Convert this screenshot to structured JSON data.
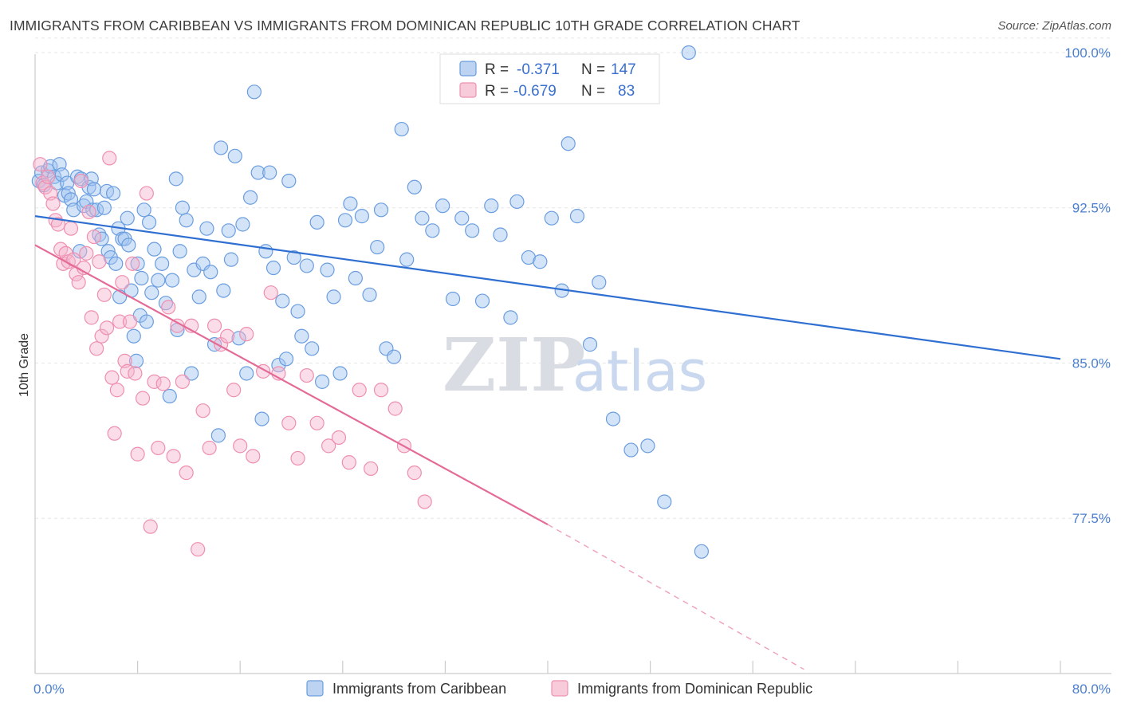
{
  "header": {
    "title": "IMMIGRANTS FROM CARIBBEAN VS IMMIGRANTS FROM DOMINICAN REPUBLIC 10TH GRADE CORRELATION CHART",
    "source": "Source: ZipAtlas.com"
  },
  "watermark": {
    "zip": "ZIP",
    "atlas": "atlas"
  },
  "legend": {
    "r_label": "R =",
    "n_label": "N =",
    "rows": [
      {
        "r": "-0.371",
        "n": "147",
        "color": "#6a9de0"
      },
      {
        "r": "-0.679",
        "n": "83",
        "color": "#ef8fb0"
      }
    ]
  },
  "chart_data": {
    "type": "scatter",
    "title": "IMMIGRANTS FROM CARIBBEAN VS IMMIGRANTS FROM DOMINICAN REPUBLIC 10TH GRADE CORRELATION CHART",
    "xlabel": "",
    "ylabel": "10th Grade",
    "xlim": [
      0,
      80
    ],
    "ylim": [
      70,
      101
    ],
    "x_tick_labels": [
      "0.0%",
      "80.0%"
    ],
    "y_ticks": [
      77.5,
      85.0,
      92.5,
      100.0
    ],
    "y_tick_labels": [
      "77.5%",
      "85.0%",
      "92.5%",
      "100.0%"
    ],
    "grid": true,
    "legend_position": "top-center",
    "series": [
      {
        "name": "Immigrants from Caribbean",
        "color": "#6a9de0",
        "trend": {
          "x": [
            0,
            80
          ],
          "y": [
            92.1,
            85.2
          ],
          "style": "solid"
        },
        "points": [
          [
            0.3,
            93.8
          ],
          [
            0.5,
            94.2
          ],
          [
            0.7,
            93.6
          ],
          [
            1.0,
            94.3
          ],
          [
            1.2,
            94.5
          ],
          [
            1.5,
            94.0
          ],
          [
            1.7,
            93.7
          ],
          [
            1.9,
            94.6
          ],
          [
            2.1,
            94.1
          ],
          [
            2.3,
            93.1
          ],
          [
            2.5,
            93.7
          ],
          [
            2.6,
            93.2
          ],
          [
            2.8,
            92.9
          ],
          [
            3.0,
            92.4
          ],
          [
            3.3,
            94.0
          ],
          [
            3.5,
            90.4
          ],
          [
            3.6,
            93.9
          ],
          [
            3.8,
            92.6
          ],
          [
            4.0,
            92.8
          ],
          [
            4.2,
            93.5
          ],
          [
            4.4,
            93.9
          ],
          [
            4.5,
            92.4
          ],
          [
            4.6,
            93.4
          ],
          [
            4.8,
            92.4
          ],
          [
            5.0,
            91.2
          ],
          [
            5.2,
            91.0
          ],
          [
            5.4,
            92.5
          ],
          [
            5.6,
            93.3
          ],
          [
            5.7,
            90.4
          ],
          [
            5.9,
            90.1
          ],
          [
            6.1,
            93.2
          ],
          [
            6.3,
            89.8
          ],
          [
            6.5,
            91.5
          ],
          [
            6.6,
            88.2
          ],
          [
            6.8,
            91.0
          ],
          [
            7.0,
            91.0
          ],
          [
            7.2,
            92.0
          ],
          [
            7.3,
            90.7
          ],
          [
            7.5,
            88.5
          ],
          [
            7.7,
            86.3
          ],
          [
            7.9,
            85.1
          ],
          [
            8.0,
            89.8
          ],
          [
            8.2,
            87.3
          ],
          [
            8.3,
            89.1
          ],
          [
            8.5,
            92.4
          ],
          [
            8.7,
            87.0
          ],
          [
            8.9,
            91.8
          ],
          [
            9.1,
            88.4
          ],
          [
            9.3,
            90.5
          ],
          [
            9.6,
            89.0
          ],
          [
            9.9,
            89.8
          ],
          [
            10.2,
            87.9
          ],
          [
            10.5,
            83.4
          ],
          [
            10.7,
            89.0
          ],
          [
            11.0,
            93.9
          ],
          [
            11.1,
            86.6
          ],
          [
            11.3,
            90.4
          ],
          [
            11.5,
            92.5
          ],
          [
            11.8,
            91.9
          ],
          [
            12.2,
            84.5
          ],
          [
            12.4,
            89.5
          ],
          [
            12.8,
            88.2
          ],
          [
            13.1,
            89.8
          ],
          [
            13.4,
            91.5
          ],
          [
            13.7,
            89.4
          ],
          [
            14.0,
            85.9
          ],
          [
            14.3,
            81.5
          ],
          [
            14.5,
            95.4
          ],
          [
            14.7,
            88.5
          ],
          [
            15.1,
            91.4
          ],
          [
            15.3,
            90.0
          ],
          [
            15.6,
            95.0
          ],
          [
            15.9,
            86.2
          ],
          [
            16.2,
            91.7
          ],
          [
            16.5,
            84.5
          ],
          [
            16.8,
            93.0
          ],
          [
            17.1,
            98.1
          ],
          [
            17.4,
            94.2
          ],
          [
            17.7,
            82.3
          ],
          [
            18.0,
            90.4
          ],
          [
            18.3,
            94.2
          ],
          [
            18.6,
            89.6
          ],
          [
            19.0,
            84.9
          ],
          [
            19.3,
            88.0
          ],
          [
            19.6,
            85.2
          ],
          [
            19.8,
            93.8
          ],
          [
            20.2,
            90.1
          ],
          [
            20.5,
            87.5
          ],
          [
            20.8,
            86.3
          ],
          [
            21.2,
            89.7
          ],
          [
            21.6,
            85.7
          ],
          [
            22.0,
            91.8
          ],
          [
            22.4,
            84.1
          ],
          [
            22.8,
            89.5
          ],
          [
            23.3,
            88.2
          ],
          [
            23.8,
            84.5
          ],
          [
            24.2,
            91.9
          ],
          [
            24.6,
            92.7
          ],
          [
            25.0,
            89.1
          ],
          [
            25.5,
            92.1
          ],
          [
            26.1,
            88.3
          ],
          [
            26.7,
            90.6
          ],
          [
            27.0,
            92.4
          ],
          [
            27.4,
            85.7
          ],
          [
            28.0,
            85.3
          ],
          [
            28.6,
            96.3
          ],
          [
            29.0,
            90.0
          ],
          [
            29.6,
            93.5
          ],
          [
            30.2,
            92.0
          ],
          [
            31.0,
            91.4
          ],
          [
            31.8,
            92.6
          ],
          [
            32.6,
            88.1
          ],
          [
            33.3,
            92.0
          ],
          [
            34.1,
            91.4
          ],
          [
            34.9,
            88.0
          ],
          [
            35.6,
            92.6
          ],
          [
            36.3,
            91.2
          ],
          [
            37.1,
            87.2
          ],
          [
            37.6,
            92.8
          ],
          [
            38.5,
            90.1
          ],
          [
            39.4,
            89.9
          ],
          [
            40.3,
            92.0
          ],
          [
            41.1,
            88.5
          ],
          [
            41.6,
            95.6
          ],
          [
            42.3,
            92.1
          ],
          [
            43.3,
            85.9
          ],
          [
            44.0,
            88.9
          ],
          [
            45.1,
            82.3
          ],
          [
            46.5,
            80.8
          ],
          [
            47.8,
            81.0
          ],
          [
            49.1,
            78.3
          ],
          [
            51.0,
            100.0
          ],
          [
            52.0,
            75.9
          ]
        ]
      },
      {
        "name": "Immigrants from Dominican Republic",
        "color": "#ef8fb0",
        "trend": {
          "x": [
            0,
            40
          ],
          "y": [
            90.7,
            77.2
          ],
          "style": "solid",
          "extension": {
            "x": [
              40,
              60
            ],
            "y": [
              77.2,
              70.2
            ],
            "style": "dashed"
          }
        },
        "points": [
          [
            0.4,
            94.6
          ],
          [
            0.6,
            93.7
          ],
          [
            0.8,
            93.5
          ],
          [
            1.0,
            94.0
          ],
          [
            1.2,
            93.2
          ],
          [
            1.4,
            92.7
          ],
          [
            1.6,
            91.9
          ],
          [
            1.8,
            91.7
          ],
          [
            2.0,
            90.5
          ],
          [
            2.2,
            89.8
          ],
          [
            2.4,
            90.3
          ],
          [
            2.6,
            89.9
          ],
          [
            2.8,
            91.5
          ],
          [
            3.0,
            90.0
          ],
          [
            3.2,
            89.3
          ],
          [
            3.4,
            88.9
          ],
          [
            3.6,
            93.8
          ],
          [
            3.8,
            89.6
          ],
          [
            4.0,
            90.3
          ],
          [
            4.2,
            92.3
          ],
          [
            4.4,
            87.2
          ],
          [
            4.6,
            91.1
          ],
          [
            4.8,
            85.7
          ],
          [
            5.0,
            89.9
          ],
          [
            5.2,
            86.3
          ],
          [
            5.4,
            88.3
          ],
          [
            5.6,
            86.7
          ],
          [
            5.8,
            94.9
          ],
          [
            6.0,
            84.3
          ],
          [
            6.2,
            81.6
          ],
          [
            6.4,
            83.7
          ],
          [
            6.6,
            87.0
          ],
          [
            6.8,
            88.9
          ],
          [
            7.0,
            85.1
          ],
          [
            7.2,
            84.6
          ],
          [
            7.4,
            87.0
          ],
          [
            7.6,
            89.8
          ],
          [
            7.8,
            84.5
          ],
          [
            8.0,
            80.6
          ],
          [
            8.4,
            83.3
          ],
          [
            8.7,
            93.2
          ],
          [
            9.0,
            77.1
          ],
          [
            9.3,
            84.1
          ],
          [
            9.6,
            80.9
          ],
          [
            10.0,
            84.0
          ],
          [
            10.4,
            87.7
          ],
          [
            10.8,
            80.5
          ],
          [
            11.1,
            86.8
          ],
          [
            11.5,
            84.1
          ],
          [
            11.8,
            79.7
          ],
          [
            12.2,
            86.8
          ],
          [
            12.7,
            76.0
          ],
          [
            13.1,
            82.7
          ],
          [
            13.6,
            80.9
          ],
          [
            14.0,
            86.8
          ],
          [
            14.5,
            85.9
          ],
          [
            15.0,
            86.3
          ],
          [
            15.5,
            83.7
          ],
          [
            16.0,
            81.0
          ],
          [
            16.5,
            86.4
          ],
          [
            17.0,
            80.5
          ],
          [
            17.8,
            84.6
          ],
          [
            18.4,
            88.4
          ],
          [
            19.0,
            84.5
          ],
          [
            19.8,
            82.1
          ],
          [
            20.5,
            80.4
          ],
          [
            21.2,
            84.4
          ],
          [
            22.0,
            82.1
          ],
          [
            22.9,
            81.0
          ],
          [
            23.7,
            81.4
          ],
          [
            24.5,
            80.2
          ],
          [
            25.3,
            83.7
          ],
          [
            26.2,
            79.9
          ],
          [
            27.0,
            83.7
          ],
          [
            28.1,
            82.8
          ],
          [
            28.8,
            81.0
          ],
          [
            29.6,
            79.7
          ],
          [
            30.4,
            78.3
          ]
        ]
      }
    ]
  }
}
